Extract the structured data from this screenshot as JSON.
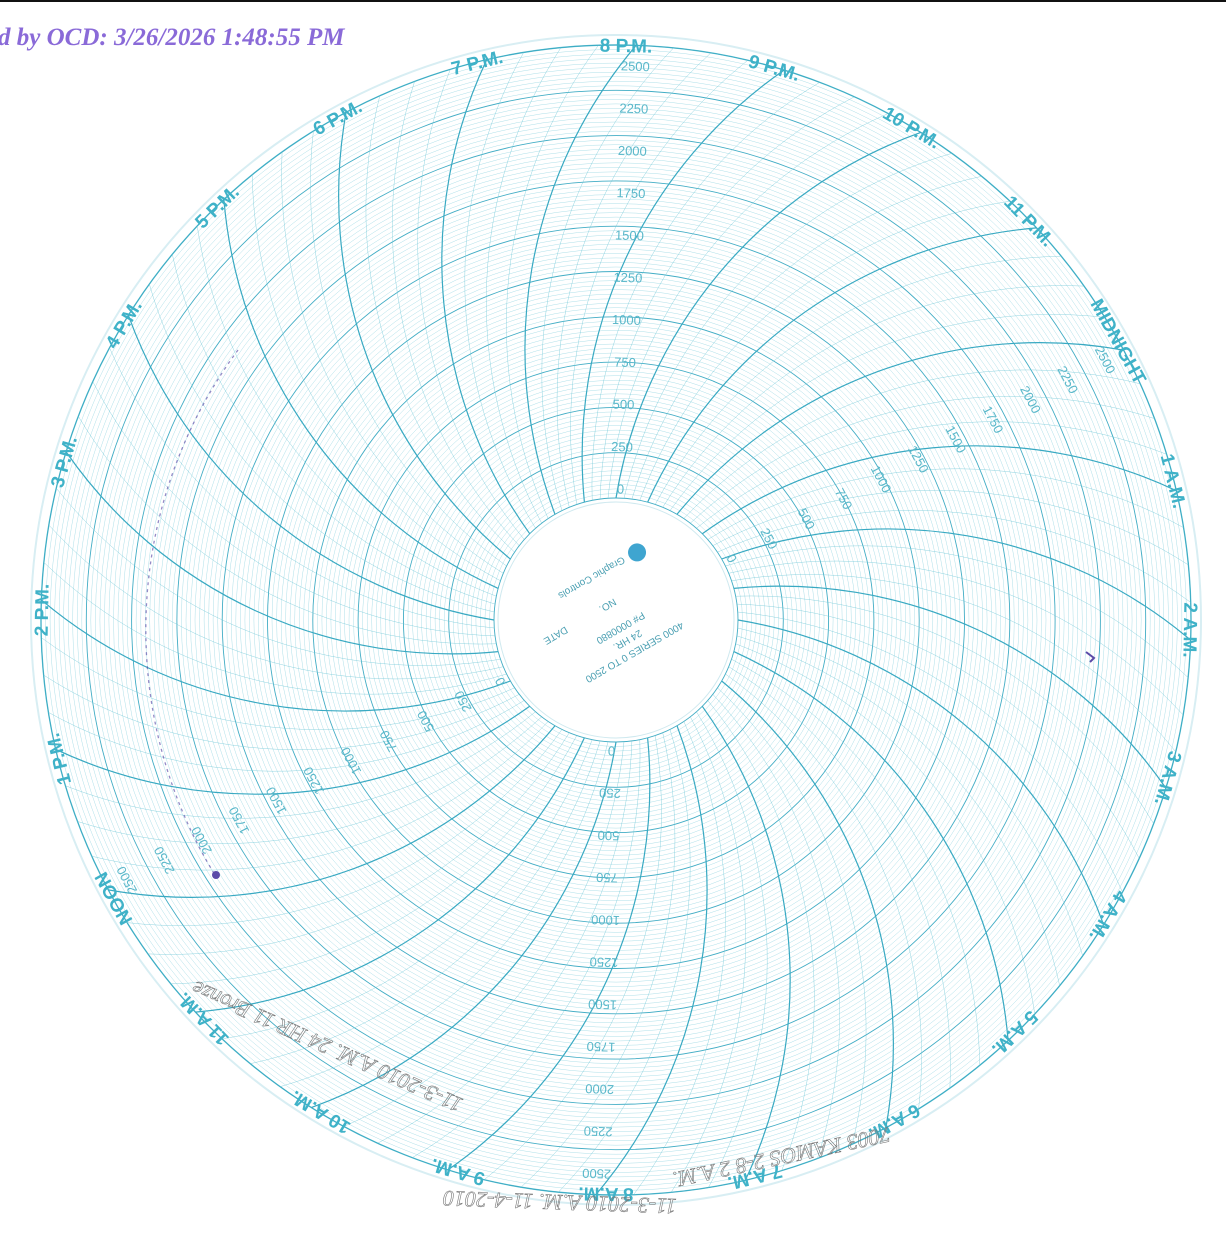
{
  "stamp_text": "d by OCD: 3/26/2026 1:48:55 PM",
  "chart": {
    "hour_labels": [
      "NOON",
      "1 P.M.",
      "2 P.M.",
      "3 P.M.",
      "4 P.M.",
      "5 P.M.",
      "6 P.M.",
      "7 P.M.",
      "8 P.M.",
      "9 P.M.",
      "10 P.M.",
      "11 P.M.",
      "MIDNIGHT",
      "1 A.M.",
      "2 A.M.",
      "3 A.M.",
      "4 A.M.",
      "5 A.M.",
      "6 A.M.",
      "7 A.M.",
      "8 A.M.",
      "9 A.M.",
      "10 A.M.",
      "11 A.M."
    ],
    "scale_values": [
      "0",
      "250",
      "500",
      "750",
      "1000",
      "1250",
      "1500",
      "1750",
      "2000",
      "2250",
      "2500"
    ],
    "scale_range": [
      0,
      2500
    ],
    "center": {
      "line1": "4000 SERIES 0 TO 2500",
      "line2": "24 HR.",
      "line3": "P# 0000880",
      "no_label": "NO.",
      "date_label": "DATE",
      "brand": "Graphic Controls"
    },
    "handwriting": {
      "line1": "7003 KAMOS 2-8 2 A.M.",
      "line2": "11-3-2010 A.M. 24 HR 11 Bronze",
      "line3": "11-3-2010 A.M. 11-4-2010"
    },
    "colors": {
      "grid": "#6cc6d6",
      "grid_dark": "#38a9c2",
      "pen_trace": "#5a4ba8"
    }
  }
}
